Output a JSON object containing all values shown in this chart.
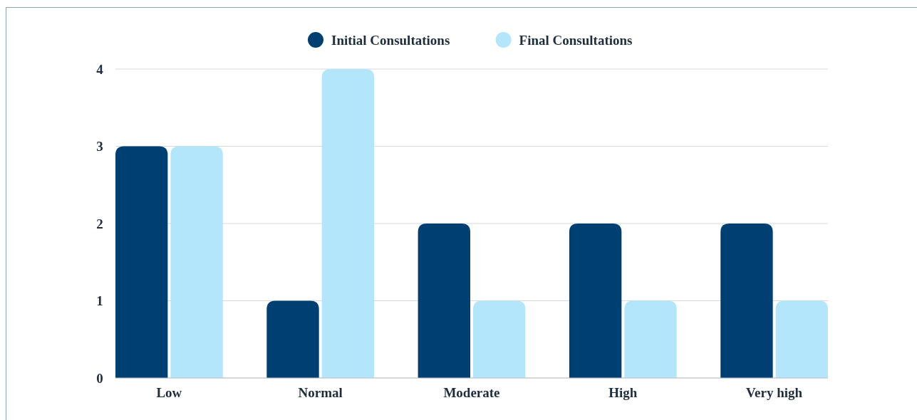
{
  "chart_data": {
    "type": "bar",
    "categories": [
      "Low",
      "Normal",
      "Moderate",
      "High",
      "Very high"
    ],
    "series": [
      {
        "name": "Initial Consultations",
        "color": "#003f72",
        "values": [
          3,
          1,
          2,
          2,
          2
        ]
      },
      {
        "name": "Final Consultations",
        "color": "#b3e5fb",
        "values": [
          3,
          4,
          1,
          1,
          1
        ]
      }
    ],
    "ylim": [
      0,
      4
    ],
    "yticks": [
      0,
      1,
      2,
      3,
      4
    ],
    "grid": "y",
    "legend": "top"
  }
}
